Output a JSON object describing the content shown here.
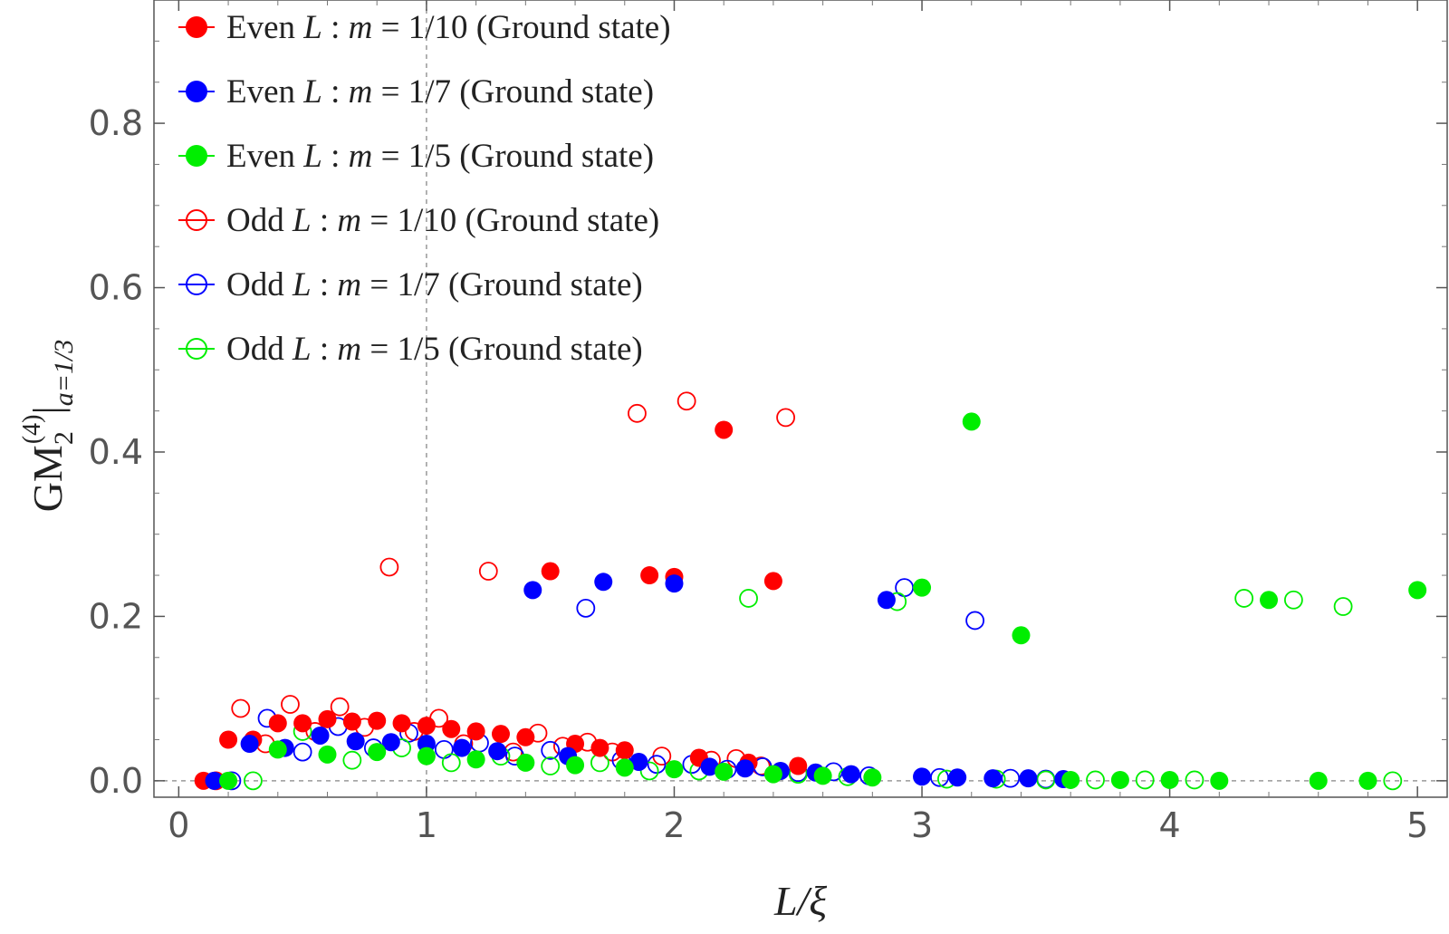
{
  "chart_data": {
    "type": "scatter",
    "title": "",
    "xlabel": "L/ξ",
    "ylabel": "GM",
    "ylabel_sub": "2",
    "ylabel_sup": "(4)",
    "ylabel_eval": "|",
    "ylabel_eval_sub": "a=1/3",
    "xlim": [
      -0.1,
      5.12
    ],
    "ylim": [
      -0.02,
      0.95
    ],
    "x_ticks": [
      0,
      1,
      2,
      3,
      4,
      5
    ],
    "x_tick_labels": [
      "0",
      "1",
      "2",
      "3",
      "4",
      "5"
    ],
    "y_ticks": [
      0.0,
      0.2,
      0.4,
      0.6,
      0.8
    ],
    "y_tick_labels": [
      "0.0",
      "0.2",
      "0.4",
      "0.6",
      "0.8"
    ],
    "reference_lines": {
      "vertical_x": 1,
      "horizontal_y": 0
    },
    "legend_position": "top-left",
    "series": [
      {
        "name": "Even L :  m = 1/10 (Ground state)",
        "name_parts": [
          "Even ",
          "L",
          " :  ",
          "m",
          " = 1/10 (Ground state)"
        ],
        "color": "#ff0000",
        "filled": true,
        "x": [
          0.1,
          0.2,
          0.3,
          0.4,
          0.5,
          0.6,
          0.7,
          0.8,
          0.9,
          1.0,
          1.1,
          1.2,
          1.3,
          1.4,
          1.5,
          1.6,
          1.7,
          1.8,
          1.9,
          2.0,
          2.1,
          2.2,
          2.3,
          2.4,
          2.5
        ],
        "y": [
          0.0,
          0.05,
          0.05,
          0.07,
          0.07,
          0.075,
          0.072,
          0.073,
          0.07,
          0.067,
          0.063,
          0.06,
          0.057,
          0.053,
          0.255,
          0.045,
          0.04,
          0.037,
          0.25,
          0.248,
          0.028,
          0.427,
          0.022,
          0.243,
          0.018
        ]
      },
      {
        "name": "Even L :  m = 1/7 (Ground state)",
        "name_parts": [
          "Even ",
          "L",
          " :  ",
          "m",
          " = 1/7 (Ground state)"
        ],
        "color": "#0000ff",
        "filled": true,
        "x": [
          0.143,
          0.286,
          0.429,
          0.571,
          0.714,
          0.857,
          1.0,
          1.143,
          1.286,
          1.429,
          1.571,
          1.714,
          1.857,
          2.0,
          2.143,
          2.286,
          2.429,
          2.571,
          2.714,
          2.857,
          3.0,
          3.143,
          3.286,
          3.429,
          3.571
        ],
        "y": [
          0.0,
          0.045,
          0.04,
          0.055,
          0.048,
          0.047,
          0.045,
          0.04,
          0.036,
          0.232,
          0.03,
          0.242,
          0.023,
          0.24,
          0.017,
          0.015,
          0.012,
          0.01,
          0.008,
          0.22,
          0.005,
          0.004,
          0.003,
          0.003,
          0.002
        ]
      },
      {
        "name": "Even L :  m = 1/5 (Ground state)",
        "name_parts": [
          "Even ",
          "L",
          " :  ",
          "m",
          " = 1/5 (Ground state)"
        ],
        "color": "#00ee00",
        "filled": true,
        "x": [
          0.2,
          0.4,
          0.6,
          0.8,
          1.0,
          1.2,
          1.4,
          1.6,
          1.8,
          2.0,
          2.2,
          2.4,
          2.6,
          2.8,
          3.0,
          3.2,
          3.4,
          3.6,
          3.8,
          4.0,
          4.2,
          4.4,
          4.6,
          4.8,
          5.0
        ],
        "y": [
          0.0,
          0.038,
          0.032,
          0.035,
          0.03,
          0.026,
          0.022,
          0.019,
          0.016,
          0.014,
          0.011,
          0.008,
          0.006,
          0.004,
          0.235,
          0.437,
          0.177,
          0.001,
          0.001,
          0.001,
          0.0,
          0.22,
          0.0,
          0.0,
          0.232
        ]
      },
      {
        "name": "Odd L :  m = 1/10 (Ground state)",
        "name_parts": [
          "Odd ",
          "L",
          " :  ",
          "m",
          " = 1/10 (Ground state)"
        ],
        "color": "#ff0000",
        "filled": false,
        "x": [
          0.15,
          0.25,
          0.35,
          0.45,
          0.55,
          0.65,
          0.75,
          0.85,
          0.95,
          1.05,
          1.15,
          1.25,
          1.35,
          1.45,
          1.55,
          1.65,
          1.75,
          1.85,
          1.95,
          2.05,
          2.15,
          2.25,
          2.35,
          2.45
        ],
        "y": [
          0.0,
          0.088,
          0.045,
          0.093,
          0.06,
          0.09,
          0.065,
          0.26,
          0.06,
          0.076,
          0.045,
          0.255,
          0.035,
          0.058,
          0.042,
          0.047,
          0.035,
          0.447,
          0.03,
          0.462,
          0.025,
          0.027,
          0.018,
          0.442
        ]
      },
      {
        "name": "Odd L :  m = 1/7 (Ground state)",
        "name_parts": [
          "Odd ",
          "L",
          " :  ",
          "m",
          " = 1/7 (Ground state)"
        ],
        "color": "#0000ff",
        "filled": false,
        "x": [
          0.214,
          0.357,
          0.5,
          0.643,
          0.786,
          0.929,
          1.071,
          1.214,
          1.357,
          1.5,
          1.643,
          1.786,
          1.929,
          2.071,
          2.214,
          2.357,
          2.5,
          2.643,
          2.786,
          2.929,
          3.071,
          3.214,
          3.357,
          3.5
        ],
        "y": [
          0.0,
          0.076,
          0.035,
          0.066,
          0.04,
          0.058,
          0.038,
          0.046,
          0.03,
          0.037,
          0.21,
          0.025,
          0.02,
          0.02,
          0.014,
          0.017,
          0.01,
          0.011,
          0.006,
          0.235,
          0.004,
          0.195,
          0.003,
          0.002
        ]
      },
      {
        "name": "Odd L :  m = 1/5 (Ground state)",
        "name_parts": [
          "Odd ",
          "L",
          " :  ",
          "m",
          " = 1/5 (Ground state)"
        ],
        "color": "#00ee00",
        "filled": false,
        "x": [
          0.3,
          0.5,
          0.7,
          0.9,
          1.1,
          1.3,
          1.5,
          1.7,
          1.9,
          2.1,
          2.3,
          2.5,
          2.7,
          2.9,
          3.1,
          3.3,
          3.5,
          3.7,
          3.9,
          4.1,
          4.3,
          4.5,
          4.7,
          4.9
        ],
        "y": [
          0.0,
          0.06,
          0.025,
          0.04,
          0.022,
          0.03,
          0.018,
          0.022,
          0.012,
          0.012,
          0.222,
          0.008,
          0.005,
          0.218,
          0.002,
          0.002,
          0.001,
          0.001,
          0.001,
          0.001,
          0.222,
          0.22,
          0.212,
          0.0
        ]
      }
    ]
  }
}
